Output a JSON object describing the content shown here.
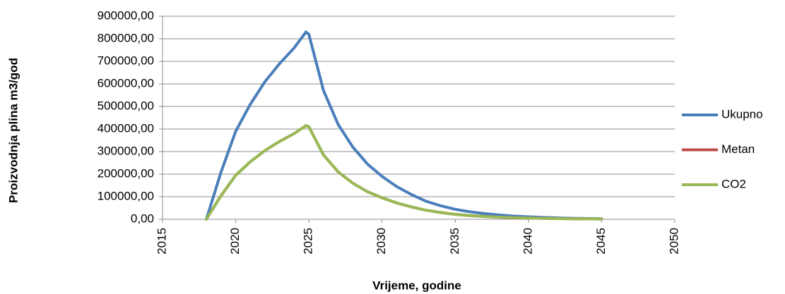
{
  "chart_data": {
    "type": "line",
    "x_label": "Vrijeme, godine",
    "y_label": "Proizvodnja plina m3/god",
    "x": [
      2018,
      2019,
      2020,
      2021,
      2022,
      2023,
      2024,
      2024.8,
      2025,
      2026,
      2027,
      2028,
      2029,
      2030,
      2031,
      2032,
      2033,
      2034,
      2035,
      2036,
      2037,
      2038,
      2039,
      2040,
      2041,
      2042,
      2043,
      2044,
      2045
    ],
    "series": [
      {
        "name": "Ukupno",
        "color": "#4a7ebb",
        "values": [
          0,
          210000,
          390000,
          510000,
          610000,
          690000,
          760000,
          830000,
          820000,
          570000,
          420000,
          320000,
          245000,
          190000,
          145000,
          110000,
          80000,
          60000,
          44000,
          33000,
          25000,
          19000,
          14000,
          11000,
          8000,
          6000,
          4500,
          3500,
          2500
        ]
      },
      {
        "name": "Metan",
        "color": "#be4b48",
        "values": [
          0,
          105000,
          195000,
          255000,
          305000,
          345000,
          380000,
          415000,
          410000,
          285000,
          210000,
          160000,
          122500,
          95000,
          72500,
          55000,
          40000,
          30000,
          22000,
          16500,
          12500,
          9500,
          7000,
          5500,
          4000,
          3000,
          2250,
          1750,
          1250
        ]
      },
      {
        "name": "CO2",
        "color": "#98b954",
        "values": [
          0,
          105000,
          195000,
          255000,
          305000,
          345000,
          380000,
          415000,
          410000,
          285000,
          210000,
          160000,
          122500,
          95000,
          72500,
          55000,
          40000,
          30000,
          22000,
          16500,
          12500,
          9500,
          7000,
          5500,
          4000,
          3000,
          2250,
          1750,
          1250
        ]
      }
    ],
    "xlim": [
      2015,
      2050
    ],
    "xticks": [
      2015,
      2020,
      2025,
      2030,
      2035,
      2040,
      2045,
      2050
    ],
    "ylim": [
      0,
      900000
    ],
    "yticks": [
      {
        "value": 0,
        "label": "0,00"
      },
      {
        "value": 100000,
        "label": "100000,00"
      },
      {
        "value": 200000,
        "label": "200000,00"
      },
      {
        "value": 300000,
        "label": "300000,00"
      },
      {
        "value": 400000,
        "label": "400000,00"
      },
      {
        "value": 500000,
        "label": "500000,00"
      },
      {
        "value": 600000,
        "label": "600000,00"
      },
      {
        "value": 700000,
        "label": "700000,00"
      },
      {
        "value": 800000,
        "label": "800000,00"
      },
      {
        "value": 900000,
        "label": "900000,00"
      }
    ],
    "grid": true,
    "legend": "right"
  }
}
